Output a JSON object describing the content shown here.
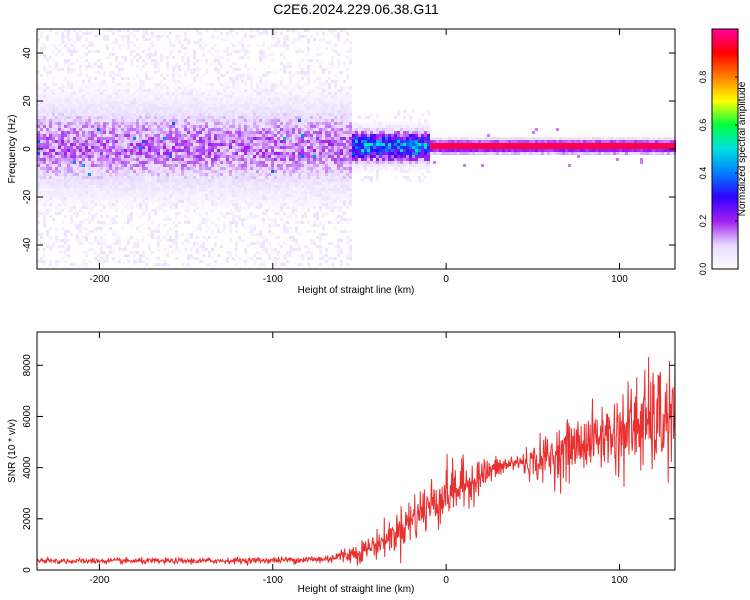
{
  "title": "C2E6.2024.229.06.38.G11",
  "chart_data": [
    {
      "type": "heatmap",
      "xlabel": "Height of straight line (km)",
      "ylabel": "Frequency (Hz)",
      "xlim": [
        -236,
        132
      ],
      "ylim": [
        -50,
        50
      ],
      "xticks": [
        -200,
        -100,
        0,
        100
      ],
      "yticks": [
        -40,
        -20,
        0,
        20,
        40
      ],
      "colorbar": {
        "label": "Normalized spectral amplitude",
        "range": [
          0,
          1
        ],
        "ticks": [
          "0.0",
          "0.2",
          "0.4",
          "0.6",
          "0.8"
        ],
        "colormap": [
          "#ffffff",
          "#e8d8ff",
          "#a020f0",
          "#3000ff",
          "#0080ff",
          "#00e0e0",
          "#00ff40",
          "#ffff00",
          "#ff8000",
          "#ff0000",
          "#ff00a0"
        ]
      },
      "regions": [
        {
          "x_range": [
            -236,
            -55
          ],
          "spread_hz": 50,
          "core_amplitude": 0.15,
          "core_spread_hz": 12
        },
        {
          "x_range": [
            -55,
            -10
          ],
          "spread_hz": 15,
          "core_amplitude": 0.4,
          "core_spread_hz": 4
        },
        {
          "x_range": [
            -10,
            132
          ],
          "spread_hz": 4,
          "core_amplitude": 0.95,
          "core_spread_hz": 1
        }
      ]
    },
    {
      "type": "line",
      "xlabel": "Height of straight line (km)",
      "ylabel": "SNR (10 * v/v)",
      "xlim": [
        -236,
        132
      ],
      "ylim": [
        0,
        9300
      ],
      "xticks": [
        -200,
        -100,
        0,
        100
      ],
      "yticks": [
        0,
        2000,
        4000,
        6000,
        8000
      ],
      "series": [
        {
          "color": "#e83030",
          "trend": {
            "x": [
              -236,
              -200,
              -150,
              -100,
              -70,
              -50,
              -40,
              -30,
              -20,
              -10,
              0,
              10,
              20,
              30,
              40,
              50,
              60,
              70,
              80,
              90,
              100,
              110,
              120,
              132
            ],
            "y": [
              350,
              350,
              350,
              380,
              420,
              700,
              1000,
              1400,
              2000,
              2500,
              3000,
              3300,
              3700,
              4000,
              4200,
              4200,
              4400,
              4700,
              5000,
              5200,
              5300,
              5700,
              5800,
              5900
            ],
            "noise": [
              80,
              80,
              80,
              90,
              120,
              300,
              400,
              500,
              700,
              800,
              800,
              700,
              500,
              300,
              250,
              500,
              700,
              800,
              800,
              900,
              1200,
              1400,
              1500,
              1600
            ]
          }
        }
      ]
    }
  ]
}
